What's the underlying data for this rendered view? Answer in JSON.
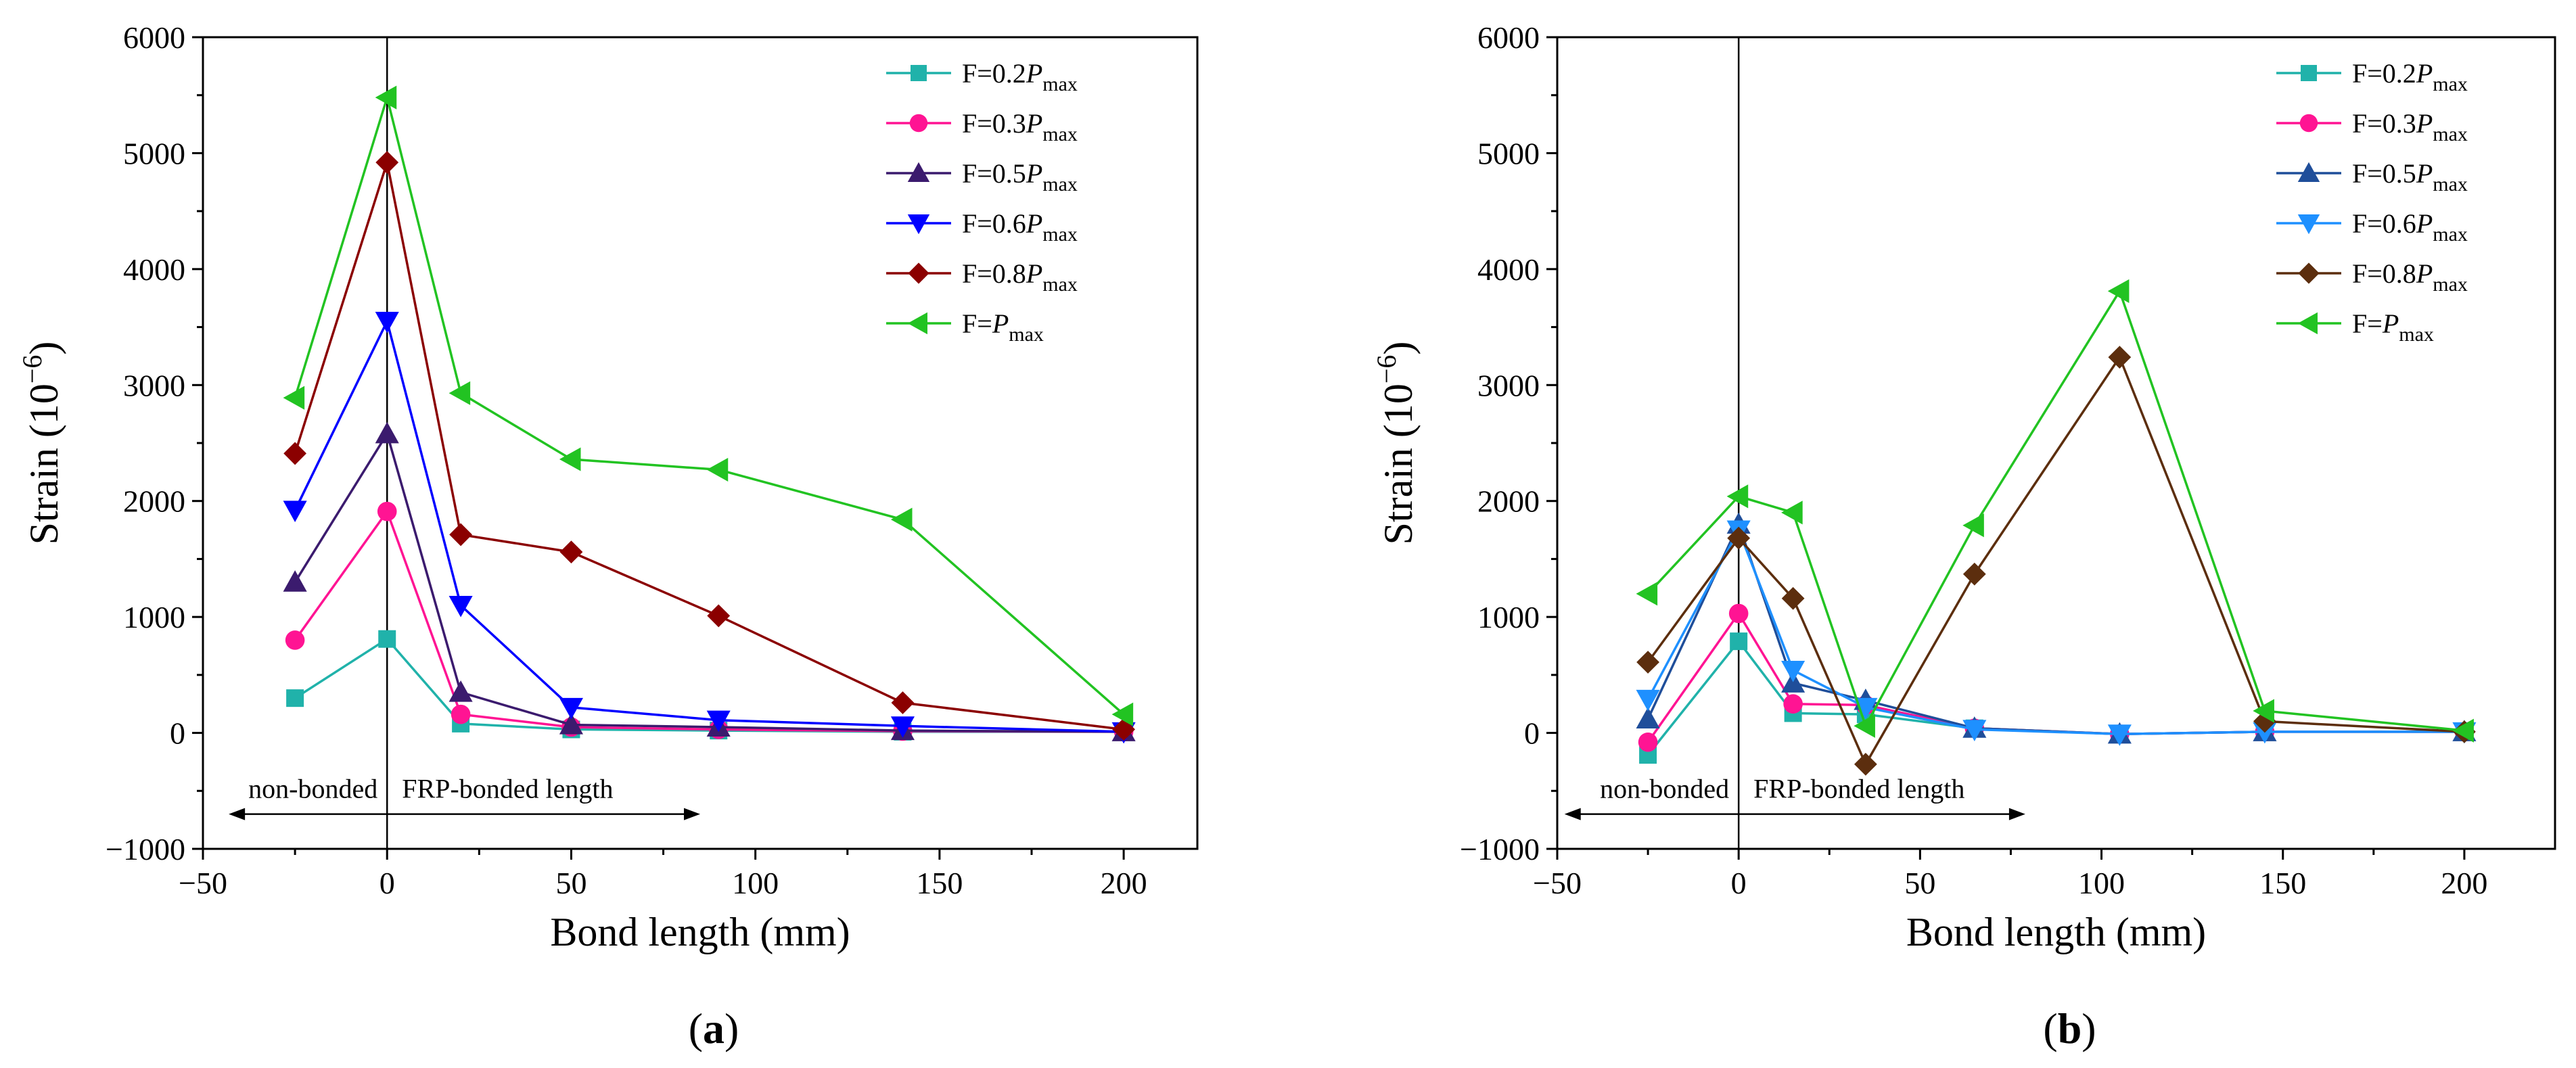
{
  "chart_data": [
    {
      "type": "line",
      "panel": "a",
      "caption": {
        "open": "(",
        "letter": "a",
        "close": ")"
      },
      "title": "",
      "xlabel": "Bond length (mm)",
      "ylabel": "Strain (10",
      "ylabel_exponent": "−6",
      "ylabel_suffix": ")",
      "xlim": [
        -50,
        220
      ],
      "ylim": [
        -1000,
        6000
      ],
      "xticks": [
        -50,
        0,
        50,
        100,
        150,
        200
      ],
      "xtick_labels": [
        "−50",
        "0",
        "50",
        "100",
        "150",
        "200"
      ],
      "yticks": [
        -1000,
        0,
        1000,
        2000,
        3000,
        4000,
        5000,
        6000
      ],
      "ytick_labels": [
        "−1000",
        "0",
        "1000",
        "2000",
        "3000",
        "4000",
        "5000",
        "6000"
      ],
      "grid": false,
      "legend_position": "top-right",
      "reference_line_x": 0,
      "annotations": {
        "left": "non-bonded",
        "right": "FRP-bonded length",
        "arrow_from": -43,
        "arrow_to": 85,
        "arrow_y": -700,
        "text_y": -560
      },
      "series": [
        {
          "name": "F=0.2Pmax",
          "prefix": "F=0.2",
          "var": "P",
          "sub": "max",
          "color": "#20B2AA",
          "marker": "square",
          "x": [
            -25,
            0,
            20,
            50,
            90,
            140,
            200
          ],
          "values": [
            300,
            810,
            80,
            30,
            20,
            10,
            10
          ]
        },
        {
          "name": "F=0.3Pmax",
          "prefix": "F=0.3",
          "var": "P",
          "sub": "max",
          "color": "#FF1493",
          "marker": "circle",
          "x": [
            -25,
            0,
            20,
            50,
            90,
            140,
            200
          ],
          "values": [
            800,
            1910,
            160,
            50,
            30,
            15,
            10
          ]
        },
        {
          "name": "F=0.5Pmax",
          "prefix": "F=0.5",
          "var": "P",
          "sub": "max",
          "color": "#3B1B6E",
          "marker": "triangle-up",
          "x": [
            -25,
            0,
            20,
            50,
            90,
            140,
            200
          ],
          "values": [
            1300,
            2580,
            350,
            70,
            50,
            20,
            10
          ]
        },
        {
          "name": "F=0.6Pmax",
          "prefix": "F=0.6",
          "var": "P",
          "sub": "max",
          "color": "#0000FF",
          "marker": "triangle-down",
          "x": [
            -25,
            0,
            20,
            50,
            90,
            140,
            200
          ],
          "values": [
            1920,
            3550,
            1100,
            220,
            110,
            60,
            10
          ]
        },
        {
          "name": "F=0.8Pmax",
          "prefix": "F=0.8",
          "var": "P",
          "sub": "max",
          "color": "#8B0000",
          "marker": "diamond",
          "x": [
            -25,
            0,
            20,
            50,
            90,
            140,
            200
          ],
          "values": [
            2410,
            4920,
            1710,
            1560,
            1010,
            260,
            30
          ]
        },
        {
          "name": "F=Pmax",
          "prefix": "F=",
          "var": "P",
          "sub": "max",
          "color": "#22C322",
          "marker": "triangle-left",
          "x": [
            -25,
            0,
            20,
            50,
            90,
            140,
            200
          ],
          "values": [
            2890,
            5480,
            2930,
            2360,
            2270,
            1840,
            160
          ]
        }
      ]
    },
    {
      "type": "line",
      "panel": "b",
      "caption": {
        "open": "(",
        "letter": "b",
        "close": ")"
      },
      "title": "",
      "xlabel": "Bond length (mm)",
      "ylabel": "Strain (10",
      "ylabel_exponent": "−6",
      "ylabel_suffix": ")",
      "xlim": [
        -50,
        225
      ],
      "ylim": [
        -1000,
        6000
      ],
      "xticks": [
        -50,
        0,
        50,
        100,
        150,
        200
      ],
      "xtick_labels": [
        "−50",
        "0",
        "50",
        "100",
        "150",
        "200"
      ],
      "yticks": [
        -1000,
        0,
        1000,
        2000,
        3000,
        4000,
        5000,
        6000
      ],
      "ytick_labels": [
        "−1000",
        "0",
        "1000",
        "2000",
        "3000",
        "4000",
        "5000",
        "6000"
      ],
      "grid": false,
      "legend_position": "top-right",
      "reference_line_x": 0,
      "annotations": {
        "left": "non-bonded",
        "right": "FRP-bonded length",
        "arrow_from": -48,
        "arrow_to": 79,
        "arrow_y": -700,
        "text_y": -560
      },
      "series": [
        {
          "name": "F=0.2Pmax",
          "prefix": "F=0.2",
          "var": "P",
          "sub": "max",
          "color": "#20B2AA",
          "marker": "square",
          "x": [
            -25,
            0,
            15,
            35,
            65,
            105,
            145,
            200
          ],
          "values": [
            -190,
            790,
            170,
            160,
            40,
            -10,
            10,
            10
          ]
        },
        {
          "name": "F=0.3Pmax",
          "prefix": "F=0.3",
          "var": "P",
          "sub": "max",
          "color": "#FF1493",
          "marker": "circle",
          "x": [
            -25,
            0,
            15,
            35,
            65,
            105,
            145,
            200
          ],
          "values": [
            -80,
            1030,
            250,
            240,
            40,
            -10,
            10,
            10
          ]
        },
        {
          "name": "F=0.5Pmax",
          "prefix": "F=0.5",
          "var": "P",
          "sub": "max",
          "color": "#1F4E9A",
          "marker": "triangle-up",
          "x": [
            -25,
            0,
            15,
            35,
            65,
            105,
            145,
            200
          ],
          "values": [
            120,
            1800,
            430,
            280,
            40,
            -10,
            10,
            10
          ]
        },
        {
          "name": "F=0.6Pmax",
          "prefix": "F=0.6",
          "var": "P",
          "sub": "max",
          "color": "#1E90FF",
          "marker": "triangle-down",
          "x": [
            -25,
            0,
            15,
            35,
            65,
            105,
            145,
            200
          ],
          "values": [
            290,
            1750,
            540,
            220,
            30,
            -10,
            10,
            10
          ]
        },
        {
          "name": "F=0.8Pmax",
          "prefix": "F=0.8",
          "var": "P",
          "sub": "max",
          "color": "#5C2E0E",
          "marker": "diamond",
          "x": [
            -25,
            0,
            15,
            35,
            65,
            105,
            145,
            200
          ],
          "values": [
            610,
            1680,
            1160,
            -270,
            1370,
            3240,
            100,
            10
          ]
        },
        {
          "name": "F=Pmax",
          "prefix": "F=",
          "var": "P",
          "sub": "max",
          "color": "#22C322",
          "marker": "triangle-left",
          "x": [
            -25,
            0,
            15,
            35,
            65,
            105,
            145,
            200
          ],
          "values": [
            1200,
            2040,
            1900,
            60,
            1790,
            3810,
            190,
            20
          ]
        }
      ]
    }
  ]
}
